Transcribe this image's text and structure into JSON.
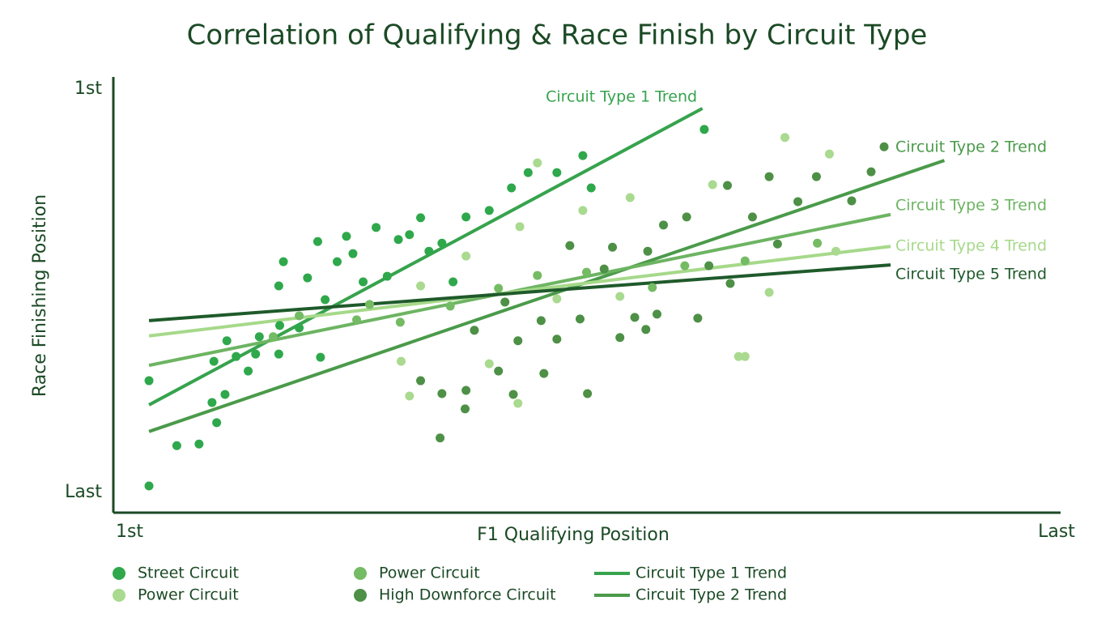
{
  "chart_data": {
    "type": "scatter",
    "title": "Correlation of Qualifying & Race Finish by Circuit Type",
    "x_label": "F1 Qualifying Position",
    "y_label": "Race Finishing Position",
    "xlim": [
      0,
      100
    ],
    "ylim": [
      0,
      100
    ],
    "xticks": [
      {
        "value": 0,
        "label": "1st"
      },
      {
        "value": 100,
        "label": "Last"
      }
    ],
    "yticks": [
      {
        "value": 100,
        "label": "1st"
      },
      {
        "value": 0,
        "label": "Last"
      }
    ],
    "series": [
      {
        "name": "Street Circuit",
        "mode": "markers",
        "color": "#2fa84b",
        "legend": true,
        "x": [
          2.1,
          2.1,
          5.1,
          7.5,
          8.9,
          9.4,
          10.3,
          9.1,
          10.5,
          11.5,
          12.8,
          13.6,
          14.0,
          16.1,
          16.2,
          16.1,
          16.6,
          18.3,
          19.2,
          20.3,
          20.6,
          21.1,
          22.4,
          23.4,
          24.1,
          25.2,
          26.6,
          27.8,
          29.0,
          30.2,
          31.4,
          32.3,
          33.7,
          34.9,
          36.3,
          38.8,
          41.2,
          43.0,
          46.1,
          48.9,
          49.8,
          62.0
        ],
        "y": [
          27.7,
          1.6,
          11.6,
          12.0,
          22.3,
          17.3,
          24.3,
          32.5,
          37.6,
          33.7,
          30.1,
          34.3,
          38.6,
          34.3,
          41.4,
          51.2,
          57.2,
          40.8,
          53.2,
          62.2,
          33.5,
          47.8,
          57.2,
          63.5,
          59.2,
          52.2,
          65.7,
          53.6,
          62.7,
          63.9,
          68.1,
          59.8,
          61.8,
          52.2,
          68.3,
          69.9,
          75.5,
          79.3,
          79.3,
          83.5,
          75.5,
          90.0
        ]
      },
      {
        "name": "Power Circuit",
        "mode": "markers",
        "color": "#a9da8f",
        "legend": true,
        "x": [
          44.0,
          48.9,
          54.0,
          62.9,
          70.7,
          75.5,
          31.4,
          36.3,
          42.1,
          46.1,
          52.9,
          69.0,
          65.7,
          66.4,
          29.3,
          30.2,
          38.8,
          41.9,
          76.2
        ],
        "y": [
          81.7,
          69.9,
          73.1,
          76.3,
          88.0,
          83.9,
          51.2,
          58.6,
          65.9,
          48.0,
          48.6,
          49.6,
          33.7,
          33.7,
          32.5,
          23.9,
          31.9,
          22.1,
          59.8
        ]
      },
      {
        "name": "Power Circuit",
        "mode": "markers",
        "color": "#74bb64",
        "legend": true,
        "x": [
          15.5,
          18.3,
          24.5,
          25.9,
          29.2,
          34.6,
          39.8,
          44.0,
          49.3,
          56.4,
          59.9,
          66.4,
          74.2
        ],
        "y": [
          38.6,
          43.8,
          42.8,
          46.6,
          42.2,
          46.2,
          50.6,
          53.8,
          54.6,
          50.8,
          56.2,
          57.4,
          61.8
        ]
      },
      {
        "name": "High Downforce Circuit",
        "mode": "markers",
        "color": "#4d9046",
        "legend": true,
        "x": [
          31.4,
          33.7,
          33.5,
          36.3,
          36.2,
          39.8,
          41.4,
          41.9,
          37.2,
          40.5,
          44.4,
          44.7,
          46.1,
          47.5,
          48.6,
          49.4,
          51.2,
          52.1,
          52.9,
          54.5,
          55.7,
          55.9,
          56.9,
          57.6,
          60.1,
          61.3,
          62.5,
          64.5,
          64.8,
          67.2,
          69.0,
          69.9,
          72.1,
          74.1,
          77.9,
          80.0,
          81.4
        ],
        "y": [
          27.7,
          24.5,
          13.5,
          25.3,
          20.7,
          30.1,
          24.3,
          37.6,
          40.2,
          47.2,
          42.6,
          29.5,
          38.0,
          61.2,
          43.0,
          24.5,
          55.4,
          60.8,
          38.4,
          43.4,
          40.4,
          59.8,
          44.2,
          66.3,
          68.3,
          43.2,
          56.2,
          76.1,
          51.8,
          68.3,
          78.3,
          61.6,
          72.1,
          78.3,
          72.3,
          79.5,
          85.7
        ]
      },
      {
        "name": "Circuit Type 1 Trend",
        "mode": "line",
        "color": "#36a34d",
        "legend": true,
        "x": [
          2.1,
          61.8
        ],
        "y": [
          21.7,
          95.2
        ]
      },
      {
        "name": "Circuit Type 2 Trend",
        "mode": "line",
        "color": "#4a9a4a",
        "legend": true,
        "x": [
          2.1,
          87.9
        ],
        "y": [
          15.1,
          82.3
        ]
      },
      {
        "name": "Circuit Type 3 Trend",
        "mode": "line",
        "color": "#6db462",
        "legend": false,
        "x": [
          2.1,
          82.1
        ],
        "y": [
          31.5,
          68.9
        ]
      },
      {
        "name": "Circuit Type 4 Trend",
        "mode": "line",
        "color": "#a6d98a",
        "legend": false,
        "x": [
          2.1,
          82.1
        ],
        "y": [
          38.8,
          61.0
        ]
      },
      {
        "name": "Circuit Type 5 Trend",
        "mode": "line",
        "color": "#1f5a2b",
        "legend": false,
        "x": [
          2.1,
          82.1
        ],
        "y": [
          42.6,
          56.4
        ]
      }
    ]
  }
}
